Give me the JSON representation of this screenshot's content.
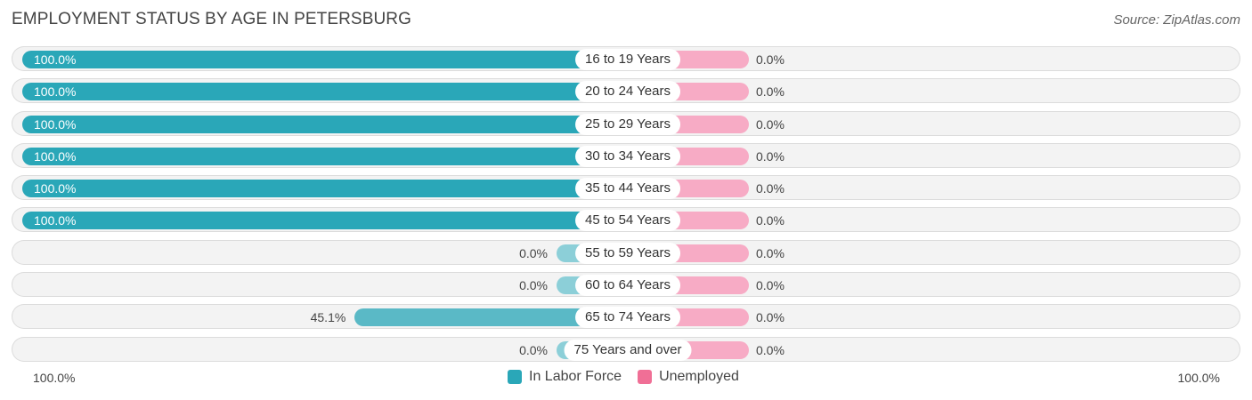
{
  "title": "EMPLOYMENT STATUS BY AGE IN PETERSBURG",
  "source": "Source: ZipAtlas.com",
  "colors": {
    "in_labor_force": "#2aa7b8",
    "in_labor_force_light": "#8ccfd8",
    "unemployed": "#f7abc5",
    "unemployed_legend": "#f06f96"
  },
  "axis": {
    "left_label": "100.0%",
    "right_label": "100.0%"
  },
  "legend": [
    {
      "label": "In Labor Force",
      "color": "#2aa7b8"
    },
    {
      "label": "Unemployed",
      "color": "#f06f96"
    }
  ],
  "chart_data": {
    "type": "bar",
    "title": "EMPLOYMENT STATUS BY AGE IN PETERSBURG",
    "categories": [
      "16 to 19 Years",
      "20 to 24 Years",
      "25 to 29 Years",
      "30 to 34 Years",
      "35 to 44 Years",
      "45 to 54 Years",
      "55 to 59 Years",
      "60 to 64 Years",
      "65 to 74 Years",
      "75 Years and over"
    ],
    "series": [
      {
        "name": "In Labor Force",
        "values": [
          100.0,
          100.0,
          100.0,
          100.0,
          100.0,
          100.0,
          0.0,
          0.0,
          45.1,
          0.0
        ],
        "labels": [
          "100.0%",
          "100.0%",
          "100.0%",
          "100.0%",
          "100.0%",
          "100.0%",
          "0.0%",
          "0.0%",
          "45.1%",
          "0.0%"
        ]
      },
      {
        "name": "Unemployed",
        "values": [
          0.0,
          0.0,
          0.0,
          0.0,
          0.0,
          0.0,
          0.0,
          0.0,
          0.0,
          0.0
        ],
        "labels": [
          "0.0%",
          "0.0%",
          "0.0%",
          "0.0%",
          "0.0%",
          "0.0%",
          "0.0%",
          "0.0%",
          "0.0%",
          "0.0%"
        ]
      }
    ],
    "xlim": [
      -100,
      100
    ],
    "legend_position": "bottom-center",
    "grid": false
  }
}
